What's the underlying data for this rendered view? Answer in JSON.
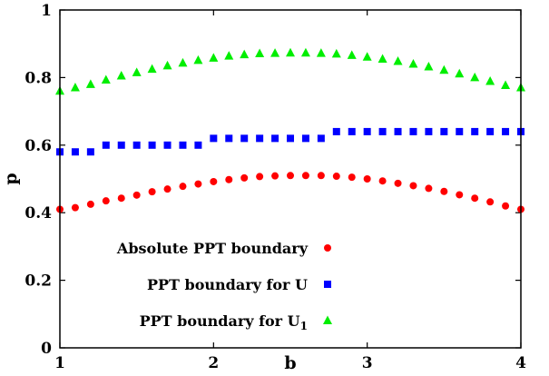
{
  "chart_data": {
    "type": "scatter",
    "title": "",
    "xlabel": "b",
    "ylabel": "p",
    "xlim": [
      1,
      4
    ],
    "ylim": [
      0,
      1
    ],
    "x_ticks": [
      1,
      2,
      3,
      4
    ],
    "y_ticks": [
      0,
      0.2,
      0.4,
      0.6,
      0.8,
      1
    ],
    "x_tick_labels": [
      "1",
      "2",
      "3",
      "4"
    ],
    "y_tick_labels": [
      "0",
      "0.2",
      "0.4",
      "0.6",
      "0.8",
      "1"
    ],
    "grid": false,
    "legend_position": "bottom-center",
    "series": [
      {
        "name": "Absolute PPT boundary",
        "marker": "circle",
        "color": "#ff0000",
        "x": [
          1.0,
          1.1,
          1.2,
          1.3,
          1.4,
          1.5,
          1.6,
          1.7,
          1.8,
          1.9,
          2.0,
          2.1,
          2.2,
          2.3,
          2.4,
          2.5,
          2.6,
          2.7,
          2.8,
          2.9,
          3.0,
          3.1,
          3.2,
          3.3,
          3.4,
          3.5,
          3.6,
          3.7,
          3.8,
          3.9,
          4.0
        ],
        "y": [
          0.41,
          0.415,
          0.425,
          0.435,
          0.443,
          0.452,
          0.462,
          0.47,
          0.478,
          0.485,
          0.492,
          0.498,
          0.503,
          0.507,
          0.509,
          0.51,
          0.51,
          0.51,
          0.508,
          0.505,
          0.5,
          0.494,
          0.487,
          0.48,
          0.472,
          0.463,
          0.453,
          0.443,
          0.432,
          0.42,
          0.41
        ]
      },
      {
        "name": "PPT boundary for U",
        "marker": "square",
        "color": "#0000ff",
        "x": [
          1.0,
          1.1,
          1.2,
          1.3,
          1.4,
          1.5,
          1.6,
          1.7,
          1.8,
          1.9,
          2.0,
          2.1,
          2.2,
          2.3,
          2.4,
          2.5,
          2.6,
          2.7,
          2.8,
          2.9,
          3.0,
          3.1,
          3.2,
          3.3,
          3.4,
          3.5,
          3.6,
          3.7,
          3.8,
          3.9,
          4.0
        ],
        "y": [
          0.58,
          0.58,
          0.58,
          0.6,
          0.6,
          0.6,
          0.6,
          0.6,
          0.6,
          0.6,
          0.62,
          0.62,
          0.62,
          0.62,
          0.62,
          0.62,
          0.62,
          0.62,
          0.64,
          0.64,
          0.64,
          0.64,
          0.64,
          0.64,
          0.64,
          0.64,
          0.64,
          0.64,
          0.64,
          0.64,
          0.64
        ]
      },
      {
        "name": "PPT boundary for U",
        "name_subscript": "1",
        "marker": "triangle",
        "color": "#00ee00",
        "x": [
          1.0,
          1.1,
          1.2,
          1.3,
          1.4,
          1.5,
          1.6,
          1.7,
          1.8,
          1.9,
          2.0,
          2.1,
          2.2,
          2.3,
          2.4,
          2.5,
          2.6,
          2.7,
          2.8,
          2.9,
          3.0,
          3.1,
          3.2,
          3.3,
          3.4,
          3.5,
          3.6,
          3.7,
          3.8,
          3.9,
          4.0
        ],
        "y": [
          0.76,
          0.77,
          0.78,
          0.793,
          0.805,
          0.815,
          0.825,
          0.835,
          0.843,
          0.851,
          0.858,
          0.864,
          0.868,
          0.871,
          0.872,
          0.873,
          0.873,
          0.872,
          0.87,
          0.866,
          0.861,
          0.855,
          0.848,
          0.84,
          0.832,
          0.822,
          0.811,
          0.8,
          0.789,
          0.777,
          0.77
        ]
      }
    ]
  }
}
